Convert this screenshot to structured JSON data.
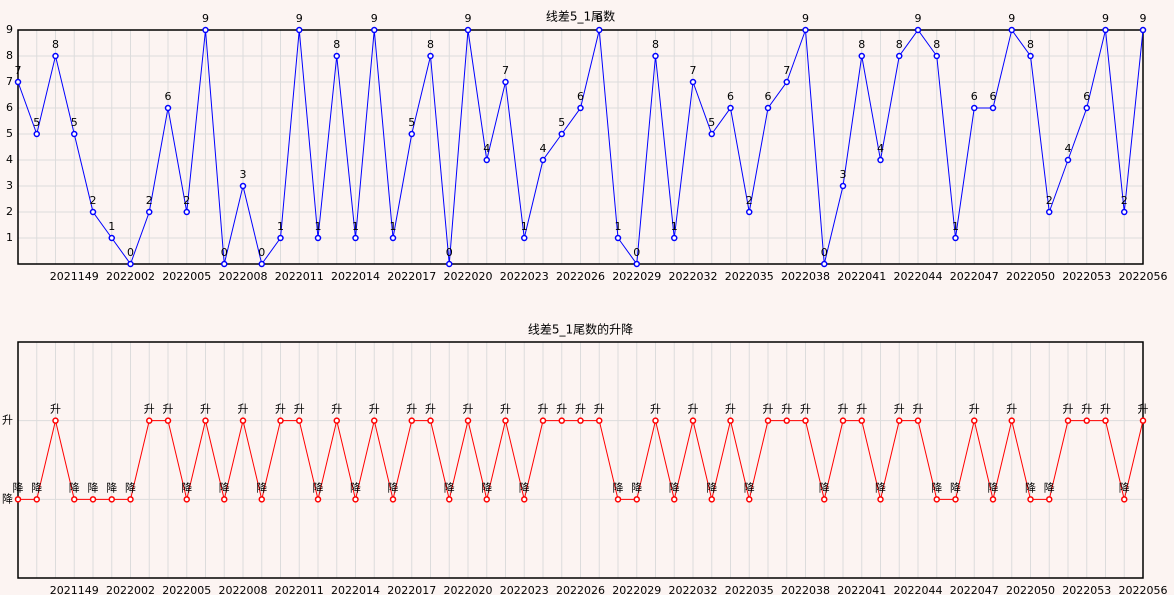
{
  "chart_data": [
    {
      "type": "line",
      "title": "线差5_1尾数",
      "categories": [
        null,
        null,
        null,
        "2021149",
        null,
        null,
        "2022002",
        null,
        null,
        "2022005",
        null,
        null,
        "2022008",
        null,
        null,
        "2022011",
        null,
        null,
        "2022014",
        null,
        null,
        "2022017",
        null,
        null,
        "2022020",
        null,
        null,
        "2022023",
        null,
        null,
        "2022026",
        null,
        null,
        "2022029",
        null,
        null,
        "2022032",
        null,
        null,
        "2022035",
        null,
        null,
        "2022038",
        null,
        null,
        "2022041",
        null,
        null,
        "2022044",
        null,
        null,
        "2022047",
        null,
        null,
        "2022050",
        null,
        null,
        "2022053",
        null,
        null,
        "2022056"
      ],
      "series": [
        {
          "color": "#0000ff",
          "values": [
            7,
            5,
            8,
            5,
            2,
            1,
            0,
            2,
            6,
            2,
            9,
            0,
            3,
            0,
            1,
            9,
            1,
            8,
            1,
            9,
            1,
            5,
            8,
            0,
            9,
            4,
            7,
            1,
            4,
            5,
            6,
            9,
            1,
            0,
            8,
            1,
            7,
            5,
            6,
            2,
            6,
            7,
            9,
            0,
            3,
            8,
            4,
            8,
            9,
            8,
            1,
            6,
            6,
            9,
            8,
            2,
            4,
            6,
            9,
            2,
            9
          ]
        }
      ],
      "ylim": [
        0,
        9
      ],
      "yticks": [
        1,
        2,
        3,
        4,
        5,
        6,
        7,
        8,
        9
      ],
      "grid": true
    },
    {
      "type": "line",
      "title": "线差5_1尾数的升降",
      "categories": [
        null,
        null,
        null,
        "2021149",
        null,
        null,
        "2022002",
        null,
        null,
        "2022005",
        null,
        null,
        "2022008",
        null,
        null,
        "2022011",
        null,
        null,
        "2022014",
        null,
        null,
        "2022017",
        null,
        null,
        "2022020",
        null,
        null,
        "2022023",
        null,
        null,
        "2022026",
        null,
        null,
        "2022029",
        null,
        null,
        "2022032",
        null,
        null,
        "2022035",
        null,
        null,
        "2022038",
        null,
        null,
        "2022041",
        null,
        null,
        "2022044",
        null,
        null,
        "2022047",
        null,
        null,
        "2022050",
        null,
        null,
        "2022053",
        null,
        null,
        "2022056"
      ],
      "series": [
        {
          "color": "#ff0000",
          "values": [
            0,
            0,
            1,
            0,
            0,
            0,
            0,
            1,
            1,
            0,
            1,
            0,
            1,
            0,
            1,
            1,
            0,
            1,
            0,
            1,
            0,
            1,
            1,
            0,
            1,
            0,
            1,
            0,
            1,
            1,
            1,
            1,
            0,
            0,
            1,
            0,
            1,
            0,
            1,
            0,
            1,
            1,
            1,
            0,
            1,
            1,
            0,
            1,
            1,
            0,
            0,
            1,
            0,
            1,
            0,
            0,
            1,
            1,
            1,
            0,
            1
          ],
          "value_labels": [
            "降",
            "降",
            "升",
            "降",
            "降",
            "降",
            "降",
            "升",
            "升",
            "降",
            "升",
            "降",
            "升",
            "降",
            "升",
            "升",
            "降",
            "升",
            "降",
            "升",
            "降",
            "升",
            "升",
            "降",
            "升",
            "降",
            "升",
            "降",
            "升",
            "升",
            "升",
            "升",
            "降",
            "降",
            "升",
            "降",
            "升",
            "降",
            "升",
            "降",
            "升",
            "升",
            "升",
            "降",
            "升",
            "升",
            "降",
            "升",
            "升",
            "降",
            "降",
            "升",
            "降",
            "升",
            "降",
            "降",
            "升",
            "升",
            "升",
            "降",
            "升"
          ]
        }
      ],
      "ylim": [
        -1,
        2
      ],
      "yticks": [
        {
          "value": 0,
          "label": "降"
        },
        {
          "value": 1,
          "label": "升"
        }
      ],
      "grid": true
    }
  ]
}
